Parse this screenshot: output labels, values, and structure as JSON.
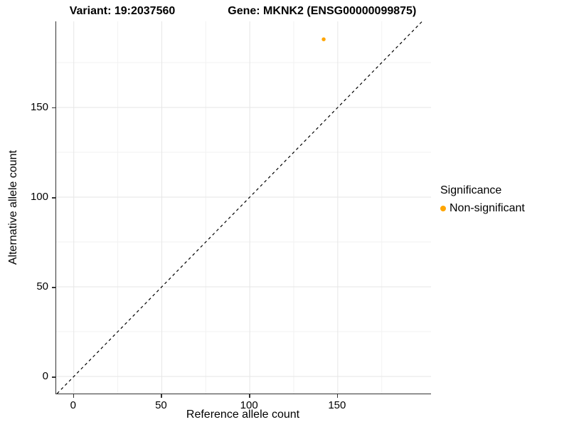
{
  "title": {
    "variant": "Variant: 19:2037560",
    "gene": "Gene: MKNK2 (ENSG00000099875)"
  },
  "axes": {
    "x_label": "Reference allele count",
    "y_label": "Alternative allele count"
  },
  "legend": {
    "title": "Significance",
    "items": [
      {
        "label": "Non-significant",
        "color": "#FFA500"
      }
    ]
  },
  "colors": {
    "background": "#ffffff",
    "grid_major": "#e6e6e6",
    "grid_minor": "#f2f2f2",
    "axis_line": "#333333",
    "tick": "#333333",
    "text": "#000000",
    "point": "#FFA500",
    "reference_line": "#000000"
  },
  "chart_data": {
    "type": "scatter",
    "title": "Variant: 19:2037560    Gene: MKNK2 (ENSG00000099875)",
    "xlabel": "Reference allele count",
    "ylabel": "Alternative allele count",
    "xlim": [
      -10,
      203
    ],
    "ylim": [
      -9.5,
      198
    ],
    "x_ticks": [
      0,
      50,
      100,
      150
    ],
    "y_ticks": [
      0,
      50,
      100,
      150
    ],
    "x_minor_ticks": [
      25,
      75,
      125,
      175
    ],
    "y_minor_ticks": [
      25,
      75,
      125,
      175
    ],
    "grid": "major+minor",
    "legend_position": "right",
    "series": [
      {
        "name": "Non-significant",
        "color": "#FFA500",
        "points": [
          {
            "x": 142,
            "y": 188
          }
        ]
      }
    ],
    "reference_line": {
      "type": "identity",
      "slope": 1,
      "intercept": 0,
      "style": "dashed",
      "color": "#000000"
    }
  }
}
